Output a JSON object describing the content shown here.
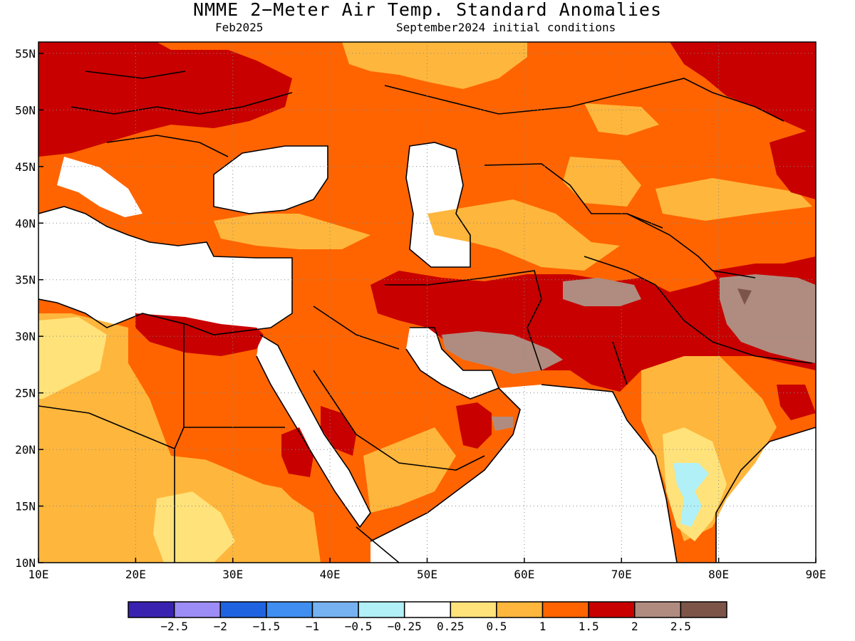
{
  "header": {
    "title": "NMME 2−Meter Air Temp. Standard Anomalies",
    "valid_month": "Feb2025",
    "initial_conditions": "September2024 initial conditions"
  },
  "map": {
    "lon_range": [
      10,
      90
    ],
    "lat_range": [
      10,
      56
    ],
    "lon_ticks": [
      "10E",
      "20E",
      "30E",
      "40E",
      "50E",
      "60E",
      "70E",
      "80E",
      "90E"
    ],
    "lat_ticks": [
      "10N",
      "15N",
      "20N",
      "25N",
      "30N",
      "35N",
      "40N",
      "45N",
      "50N",
      "55N"
    ],
    "gridlines": true
  },
  "colorbar": {
    "colors": [
      "#3a22b0",
      "#9c8cf6",
      "#1f63e0",
      "#3f8ef0",
      "#76b2f2",
      "#b0f0f6",
      "#ffffff",
      "#ffe27a",
      "#ffb63c",
      "#ff6400",
      "#c80000",
      "#b08c80",
      "#7c5548"
    ],
    "labels": [
      "−2.5",
      "−2",
      "−1.5",
      "−1",
      "−0.5",
      "−0.25",
      "0.25",
      "0.5",
      "1",
      "1.5",
      "2",
      "2.5"
    ]
  }
}
